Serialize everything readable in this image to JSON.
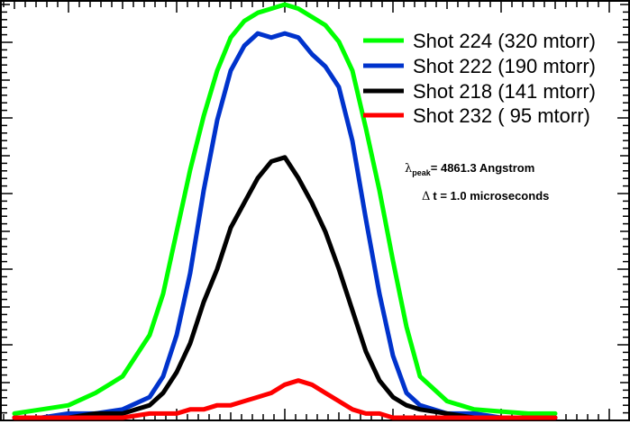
{
  "chart_data": {
    "type": "line",
    "title": "",
    "xlabel": "",
    "ylabel": "",
    "x_tick_labels": [],
    "y_tick_labels": [],
    "grid": false,
    "legend_position": "upper right",
    "x": [
      -1.0,
      -0.9,
      -0.8,
      -0.7,
      -0.6,
      -0.5,
      -0.45,
      -0.4,
      -0.35,
      -0.3,
      -0.25,
      -0.2,
      -0.15,
      -0.1,
      -0.05,
      0.0,
      0.05,
      0.1,
      0.15,
      0.2,
      0.25,
      0.3,
      0.35,
      0.4,
      0.45,
      0.5,
      0.6,
      0.7,
      0.8,
      0.9,
      1.0
    ],
    "series": [
      {
        "name": "Shot 224 (320 mtorr)",
        "color": "#00ff00",
        "values": [
          0.01,
          0.02,
          0.03,
          0.06,
          0.1,
          0.2,
          0.3,
          0.45,
          0.6,
          0.73,
          0.84,
          0.92,
          0.96,
          0.98,
          0.99,
          1.0,
          0.99,
          0.97,
          0.95,
          0.91,
          0.84,
          0.7,
          0.55,
          0.38,
          0.22,
          0.1,
          0.04,
          0.02,
          0.015,
          0.01,
          0.01
        ]
      },
      {
        "name": "Shot 222 (190 mtorr)",
        "color": "#0033cc",
        "values": [
          0.0,
          0.0,
          0.01,
          0.01,
          0.02,
          0.05,
          0.1,
          0.2,
          0.35,
          0.55,
          0.72,
          0.84,
          0.9,
          0.93,
          0.92,
          0.93,
          0.92,
          0.88,
          0.85,
          0.8,
          0.67,
          0.48,
          0.3,
          0.15,
          0.06,
          0.03,
          0.01,
          0.01,
          0.0,
          0.0,
          0.0
        ]
      },
      {
        "name": "Shot 218 (141 mtorr)",
        "color": "#000000",
        "values": [
          0.0,
          0.0,
          0.0,
          0.01,
          0.01,
          0.03,
          0.06,
          0.11,
          0.18,
          0.28,
          0.36,
          0.46,
          0.52,
          0.58,
          0.62,
          0.63,
          0.58,
          0.52,
          0.45,
          0.36,
          0.26,
          0.16,
          0.09,
          0.05,
          0.03,
          0.02,
          0.01,
          0.0,
          0.0,
          0.0,
          0.0
        ]
      },
      {
        "name": "Shot 232 ( 95 mtorr)",
        "color": "#ff0000",
        "values": [
          0.0,
          0.0,
          0.0,
          0.0,
          0.0,
          0.01,
          0.01,
          0.01,
          0.02,
          0.02,
          0.03,
          0.03,
          0.04,
          0.05,
          0.06,
          0.08,
          0.09,
          0.08,
          0.06,
          0.04,
          0.02,
          0.01,
          0.01,
          0.0,
          0.0,
          0.0,
          0.0,
          0.0,
          0.0,
          0.0,
          0.0
        ]
      }
    ],
    "annotations": [
      {
        "text": "λpeak= 4861.3 Angstrom",
        "symbol": "λ",
        "subscript": "peak",
        "rest": "= 4861.3 Angstrom"
      },
      {
        "text": "Δt = 1.0 microseconds",
        "symbol": "Δ",
        "rest": "t = 1.0 microseconds"
      }
    ]
  },
  "legend": {
    "items": [
      {
        "label": "Shot 224 (320 mtorr)",
        "color": "#00ff00"
      },
      {
        "label": "Shot 222 (190 mtorr)",
        "color": "#0033cc"
      },
      {
        "label": "Shot 218 (141 mtorr)",
        "color": "#000000"
      },
      {
        "label": "Shot 232 ( 95 mtorr)",
        "color": "#ff0000"
      }
    ]
  },
  "annotations": {
    "lambda_symbol": "λ",
    "lambda_sub": "peak",
    "lambda_rest": "= 4861.3 Angstrom",
    "dt_symbol": "Δ",
    "dt_rest": "t = 1.0 microseconds"
  }
}
